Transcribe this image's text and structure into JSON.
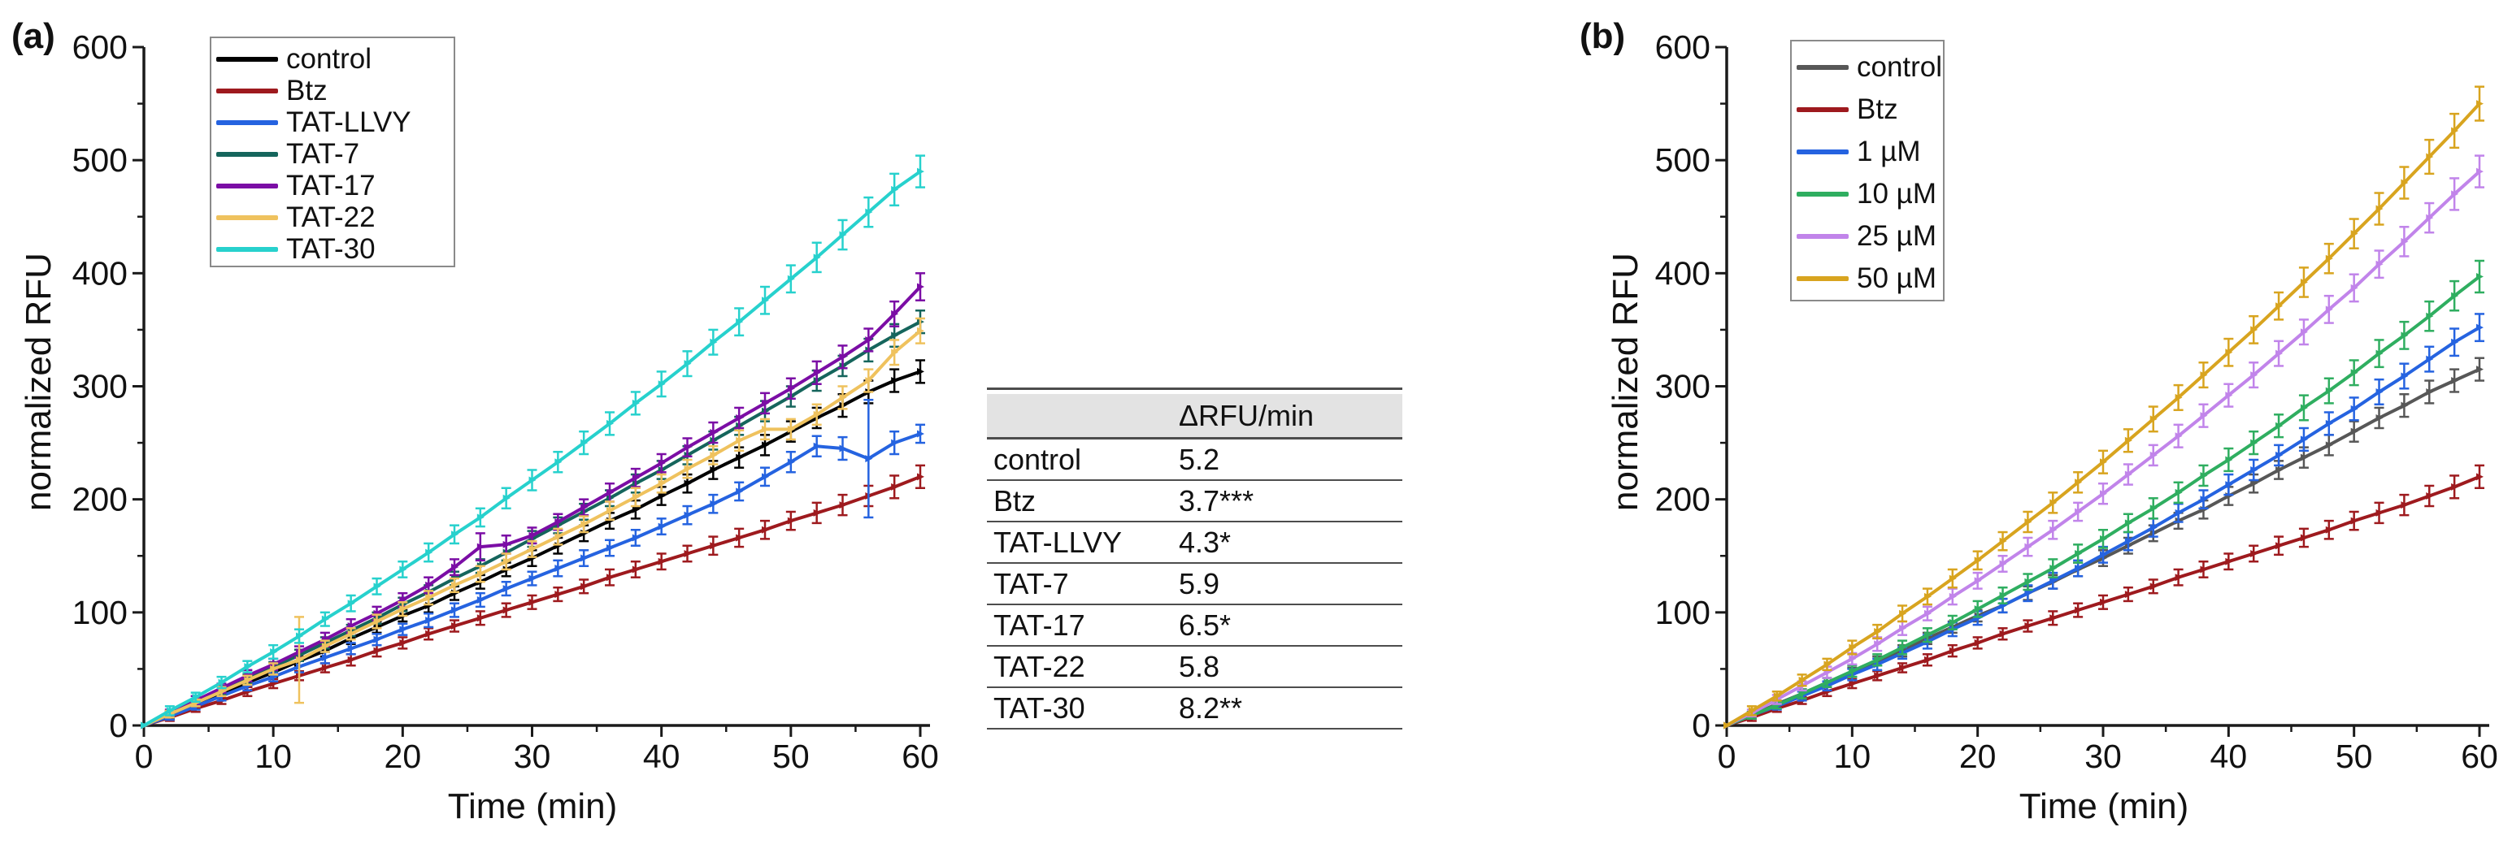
{
  "panels": [
    {
      "label": "(a)"
    },
    {
      "label": "(b)"
    }
  ],
  "chart_data": [
    {
      "type": "line",
      "title": "",
      "xlabel": "Time (min)",
      "ylabel": "normalized RFU",
      "xlim": [
        0,
        60
      ],
      "ylim": [
        0,
        600
      ],
      "xticks": [
        0,
        10,
        20,
        30,
        40,
        50,
        60
      ],
      "yticks": [
        0,
        100,
        200,
        300,
        400,
        500,
        600
      ],
      "minor_x_step": 5,
      "minor_y_step": 50,
      "grid": false,
      "legend_position": "top-left",
      "x": [
        0,
        2,
        4,
        6,
        8,
        10,
        12,
        14,
        16,
        18,
        20,
        22,
        24,
        26,
        28,
        30,
        32,
        34,
        36,
        38,
        40,
        42,
        44,
        46,
        48,
        50,
        52,
        54,
        56,
        58,
        60
      ],
      "series": [
        {
          "name": "control",
          "color": "#000000",
          "values": [
            0,
            9,
            19,
            28,
            38,
            47,
            57,
            66,
            77,
            87,
            97,
            106,
            117,
            127,
            138,
            148,
            159,
            170,
            181,
            191,
            203,
            214,
            226,
            237,
            248,
            260,
            272,
            283,
            295,
            305,
            313
          ],
          "errors": [
            2,
            3,
            3,
            4,
            4,
            4,
            4,
            5,
            5,
            5,
            5,
            6,
            6,
            6,
            6,
            7,
            7,
            7,
            7,
            8,
            8,
            8,
            8,
            9,
            9,
            9,
            9,
            10,
            10,
            10,
            10
          ]
        },
        {
          "name": "Btz",
          "color": "#9e1a1e",
          "values": [
            0,
            7,
            15,
            22,
            30,
            37,
            44,
            51,
            58,
            66,
            73,
            81,
            88,
            95,
            102,
            109,
            116,
            123,
            131,
            138,
            145,
            152,
            159,
            166,
            173,
            181,
            188,
            195,
            203,
            211,
            220
          ],
          "errors": [
            2,
            3,
            3,
            3,
            4,
            4,
            4,
            4,
            5,
            5,
            5,
            5,
            5,
            6,
            6,
            6,
            6,
            6,
            7,
            7,
            7,
            7,
            8,
            8,
            8,
            8,
            9,
            9,
            9,
            10,
            10
          ]
        },
        {
          "name": "TAT-LLVY",
          "color": "#2563e0",
          "values": [
            0,
            8,
            17,
            26,
            35,
            43,
            52,
            60,
            68,
            76,
            85,
            93,
            102,
            111,
            121,
            130,
            139,
            148,
            157,
            166,
            176,
            186,
            196,
            207,
            220,
            233,
            247,
            245,
            236,
            250,
            258
          ],
          "errors": [
            2,
            3,
            3,
            4,
            4,
            4,
            5,
            5,
            5,
            5,
            5,
            6,
            6,
            6,
            6,
            6,
            7,
            7,
            7,
            7,
            7,
            8,
            8,
            8,
            8,
            9,
            9,
            10,
            52,
            10,
            8
          ]
        },
        {
          "name": "TAT-7",
          "color": "#15655c",
          "values": [
            0,
            10,
            20,
            31,
            41,
            52,
            62,
            73,
            84,
            95,
            107,
            118,
            130,
            141,
            153,
            165,
            177,
            189,
            201,
            214,
            226,
            239,
            252,
            265,
            278,
            291,
            305,
            318,
            332,
            345,
            357
          ],
          "errors": [
            2,
            3,
            3,
            4,
            4,
            4,
            5,
            5,
            5,
            5,
            6,
            6,
            6,
            6,
            7,
            7,
            7,
            7,
            7,
            8,
            8,
            8,
            8,
            8,
            9,
            9,
            9,
            9,
            10,
            10,
            10
          ]
        },
        {
          "name": "TAT-17",
          "color": "#7b0da5",
          "values": [
            0,
            11,
            22,
            33,
            44,
            54,
            65,
            76,
            88,
            99,
            111,
            124,
            140,
            158,
            160,
            168,
            180,
            193,
            206,
            219,
            232,
            246,
            259,
            272,
            285,
            298,
            312,
            326,
            341,
            364,
            388
          ],
          "errors": [
            2,
            3,
            4,
            4,
            5,
            5,
            5,
            6,
            6,
            6,
            6,
            7,
            7,
            12,
            8,
            7,
            7,
            7,
            8,
            8,
            8,
            8,
            9,
            9,
            9,
            9,
            10,
            10,
            10,
            11,
            12
          ]
        },
        {
          "name": "TAT-22",
          "color": "#efc25e",
          "values": [
            0,
            10,
            20,
            30,
            40,
            50,
            58,
            70,
            81,
            92,
            103,
            113,
            124,
            134,
            145,
            156,
            167,
            178,
            190,
            202,
            214,
            227,
            239,
            252,
            262,
            262,
            275,
            290,
            305,
            330,
            349
          ],
          "errors": [
            2,
            3,
            3,
            4,
            4,
            5,
            38,
            5,
            5,
            6,
            6,
            6,
            6,
            7,
            7,
            7,
            7,
            7,
            8,
            8,
            8,
            8,
            8,
            9,
            9,
            9,
            9,
            10,
            10,
            11,
            11
          ]
        },
        {
          "name": "TAT-30",
          "color": "#27d1cd",
          "values": [
            0,
            13,
            25,
            38,
            52,
            65,
            79,
            94,
            108,
            123,
            138,
            153,
            169,
            184,
            201,
            217,
            233,
            250,
            267,
            285,
            302,
            320,
            339,
            357,
            376,
            395,
            414,
            434,
            454,
            474,
            490
          ],
          "errors": [
            3,
            4,
            4,
            5,
            5,
            6,
            6,
            6,
            7,
            7,
            7,
            8,
            8,
            8,
            9,
            9,
            9,
            10,
            10,
            10,
            11,
            11,
            11,
            12,
            12,
            12,
            13,
            13,
            13,
            14,
            14
          ]
        }
      ]
    },
    {
      "type": "line",
      "title": "",
      "xlabel": "Time (min)",
      "ylabel": "normalized RFU",
      "xlim": [
        0,
        60
      ],
      "ylim": [
        0,
        600
      ],
      "xticks": [
        0,
        10,
        20,
        30,
        40,
        50,
        60
      ],
      "yticks": [
        0,
        100,
        200,
        300,
        400,
        500,
        600
      ],
      "minor_x_step": 5,
      "minor_y_step": 50,
      "grid": false,
      "legend_position": "top-left",
      "x": [
        0,
        2,
        4,
        6,
        8,
        10,
        12,
        14,
        16,
        18,
        20,
        22,
        24,
        26,
        28,
        30,
        32,
        34,
        36,
        38,
        40,
        42,
        44,
        46,
        48,
        50,
        52,
        54,
        56,
        58,
        60
      ],
      "series": [
        {
          "name": "control",
          "color": "#575757",
          "values": [
            0,
            9,
            19,
            28,
            38,
            47,
            57,
            66,
            77,
            87,
            97,
            106,
            117,
            127,
            138,
            148,
            159,
            170,
            181,
            191,
            203,
            214,
            226,
            237,
            248,
            260,
            272,
            283,
            295,
            305,
            315
          ],
          "errors": [
            2,
            3,
            3,
            4,
            4,
            4,
            4,
            5,
            5,
            5,
            5,
            6,
            6,
            6,
            6,
            7,
            7,
            7,
            7,
            8,
            8,
            8,
            8,
            9,
            9,
            9,
            9,
            10,
            10,
            10,
            10
          ]
        },
        {
          "name": "Btz",
          "color": "#9e1a1e",
          "values": [
            0,
            7,
            15,
            22,
            30,
            37,
            44,
            51,
            58,
            66,
            73,
            81,
            88,
            95,
            102,
            109,
            116,
            123,
            131,
            138,
            145,
            152,
            159,
            166,
            173,
            181,
            188,
            195,
            203,
            211,
            220
          ],
          "errors": [
            2,
            3,
            3,
            3,
            4,
            4,
            4,
            4,
            5,
            5,
            5,
            5,
            5,
            6,
            6,
            6,
            6,
            6,
            7,
            7,
            7,
            7,
            8,
            8,
            8,
            8,
            9,
            9,
            9,
            10,
            10
          ]
        },
        {
          "name": "1 µM",
          "color": "#2563e0",
          "values": [
            0,
            9,
            17,
            26,
            35,
            45,
            54,
            64,
            74,
            85,
            95,
            106,
            117,
            128,
            139,
            151,
            163,
            175,
            188,
            200,
            213,
            226,
            239,
            253,
            267,
            280,
            295,
            309,
            324,
            339,
            352
          ],
          "errors": [
            2,
            3,
            3,
            4,
            4,
            5,
            5,
            5,
            6,
            6,
            6,
            6,
            7,
            7,
            7,
            7,
            8,
            8,
            8,
            8,
            9,
            9,
            9,
            10,
            10,
            10,
            11,
            11,
            11,
            12,
            12
          ]
        },
        {
          "name": "10 µM",
          "color": "#2fae60",
          "values": [
            0,
            9,
            18,
            28,
            38,
            48,
            58,
            69,
            80,
            91,
            103,
            115,
            127,
            139,
            152,
            165,
            179,
            192,
            206,
            221,
            235,
            250,
            265,
            281,
            296,
            312,
            329,
            345,
            362,
            380,
            397
          ],
          "errors": [
            2,
            3,
            3,
            4,
            4,
            5,
            5,
            6,
            6,
            6,
            7,
            7,
            7,
            8,
            8,
            8,
            8,
            9,
            9,
            9,
            10,
            10,
            10,
            11,
            11,
            11,
            12,
            12,
            13,
            13,
            14
          ]
        },
        {
          "name": "25 µM",
          "color": "#c184ea",
          "values": [
            0,
            11,
            23,
            35,
            47,
            59,
            72,
            86,
            99,
            114,
            128,
            143,
            158,
            173,
            189,
            205,
            222,
            239,
            256,
            274,
            292,
            310,
            329,
            348,
            368,
            387,
            408,
            428,
            449,
            470,
            490
          ],
          "errors": [
            2,
            3,
            4,
            4,
            5,
            5,
            6,
            6,
            6,
            7,
            7,
            7,
            8,
            8,
            8,
            9,
            9,
            9,
            10,
            10,
            10,
            11,
            11,
            11,
            12,
            12,
            12,
            13,
            13,
            14,
            14
          ]
        },
        {
          "name": "50 µM",
          "color": "#d8a41f",
          "values": [
            0,
            13,
            26,
            40,
            54,
            69,
            83,
            99,
            114,
            130,
            146,
            163,
            180,
            197,
            215,
            233,
            252,
            271,
            290,
            310,
            330,
            350,
            371,
            392,
            413,
            435,
            457,
            480,
            503,
            526,
            550
          ],
          "errors": [
            3,
            4,
            4,
            5,
            5,
            6,
            6,
            7,
            7,
            8,
            8,
            8,
            9,
            9,
            9,
            10,
            10,
            11,
            11,
            11,
            12,
            12,
            12,
            13,
            13,
            13,
            14,
            14,
            15,
            15,
            15
          ]
        }
      ]
    }
  ],
  "table": {
    "header": {
      "label": "",
      "value": "ΔRFU/min"
    },
    "rows": [
      {
        "label": "control",
        "value": "5.2"
      },
      {
        "label": "Btz",
        "value": "3.7***"
      },
      {
        "label": "TAT-LLVY",
        "value": "4.3*"
      },
      {
        "label": "TAT-7",
        "value": "5.9"
      },
      {
        "label": "TAT-17",
        "value": "6.5*"
      },
      {
        "label": "TAT-22",
        "value": "5.8"
      },
      {
        "label": "TAT-30",
        "value": "8.2**"
      }
    ]
  },
  "colors": {
    "axis": "#1a1a1a",
    "table_border": "#4d4d4d",
    "table_header_bg": "#e3e3e3",
    "legend_border": "#8a8a8a"
  }
}
